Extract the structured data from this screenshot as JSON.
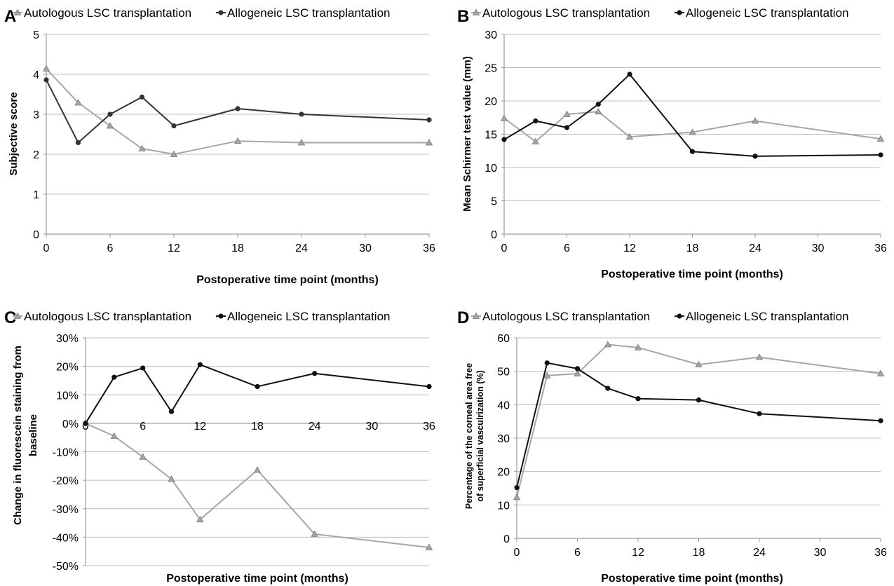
{
  "colors": {
    "autologous": "#a6a6a6",
    "allogeneic": "#333333",
    "allogeneic_dark": "#111111",
    "grid": "#bdbdbd",
    "axis": "#9a9a9a"
  },
  "chart_data": [
    {
      "panel": "A",
      "type": "line",
      "ylabel": "Subjective score",
      "xlabel": "Postoperative time point (months)",
      "xlim": [
        0,
        36
      ],
      "xticks": [
        0,
        6,
        12,
        18,
        24,
        30,
        36
      ],
      "ylim": [
        0,
        5
      ],
      "yticks": [
        0,
        1,
        2,
        3,
        4,
        5
      ],
      "ytick_labels": [
        "0",
        "1",
        "2",
        "3",
        "4",
        "5"
      ],
      "grid": true,
      "legend": "top",
      "series": [
        {
          "name": "Autologous LSC transplantation",
          "marker": "triangle",
          "x": [
            0,
            3,
            6,
            9,
            12,
            18,
            24,
            36
          ],
          "y": [
            4.14,
            3.29,
            2.71,
            2.14,
            2.0,
            2.33,
            2.29,
            2.29
          ]
        },
        {
          "name": "Allogeneic LSC transplantation",
          "marker": "circle",
          "x": [
            0,
            3,
            6,
            9,
            12,
            18,
            24,
            36
          ],
          "y": [
            3.86,
            2.29,
            3.0,
            3.43,
            2.71,
            3.14,
            3.0,
            2.86
          ]
        }
      ]
    },
    {
      "panel": "B",
      "type": "line",
      "ylabel": "Mean Schirmer test value (mm)",
      "xlabel": "Postoperative time point (months)",
      "xlim": [
        0,
        36
      ],
      "xticks": [
        0,
        6,
        12,
        18,
        24,
        30,
        36
      ],
      "ylim": [
        0,
        30
      ],
      "yticks": [
        0,
        5,
        10,
        15,
        20,
        25,
        30
      ],
      "ytick_labels": [
        "0",
        "5",
        "10",
        "15",
        "20",
        "25",
        "30"
      ],
      "grid": true,
      "legend": "top",
      "series": [
        {
          "name": "Autologous LSC transplantation",
          "marker": "triangle",
          "x": [
            0,
            3,
            6,
            9,
            12,
            18,
            24,
            36
          ],
          "y": [
            17.4,
            13.9,
            18.0,
            18.4,
            14.6,
            15.3,
            17.0,
            14.3
          ]
        },
        {
          "name": "Allogeneic LSC transplantation",
          "marker": "circle",
          "x": [
            0,
            3,
            6,
            9,
            12,
            18,
            24,
            36
          ],
          "y": [
            14.2,
            17.0,
            16.0,
            19.5,
            24.0,
            12.4,
            11.7,
            11.9
          ]
        }
      ]
    },
    {
      "panel": "C",
      "type": "line",
      "ylabel": "Change in fluorescein staining from baseline",
      "xlabel": "Postoperative time point (months)",
      "xlim": [
        0,
        36
      ],
      "xticks": [
        0,
        6,
        12,
        18,
        24,
        30,
        36
      ],
      "x_axis_crosses_at": 0,
      "ylim": [
        -50,
        30
      ],
      "yticks": [
        -50,
        -40,
        -30,
        -20,
        -10,
        0,
        10,
        20,
        30
      ],
      "ytick_labels": [
        "-50%",
        "-40%",
        "-30%",
        "-20%",
        "-10%",
        "0%",
        "10%",
        "20%",
        "30%"
      ],
      "grid": true,
      "legend": "top",
      "series": [
        {
          "name": "Autologous LSC transplantation",
          "marker": "triangle",
          "x": [
            0,
            3,
            6,
            9,
            12,
            18,
            24,
            36
          ],
          "y": [
            0,
            -4.5,
            -11.8,
            -19.6,
            -33.8,
            -16.4,
            -38.9,
            -43.6
          ]
        },
        {
          "name": "Allogeneic LSC transplantation",
          "marker": "circle",
          "x": [
            0,
            3,
            6,
            9,
            12,
            18,
            24,
            36
          ],
          "y": [
            0,
            16.2,
            19.4,
            4.1,
            20.6,
            12.9,
            17.5,
            12.9
          ]
        }
      ]
    },
    {
      "panel": "D",
      "type": "line",
      "ylabel": "Percentage of the corneal area free of superficial vasculrization (%)",
      "xlabel": "Postoperative time point (months)",
      "xlim": [
        0,
        36
      ],
      "xticks": [
        0,
        6,
        12,
        18,
        24,
        30,
        36
      ],
      "ylim": [
        0,
        60
      ],
      "yticks": [
        0,
        10,
        20,
        30,
        40,
        50,
        60
      ],
      "ytick_labels": [
        "0",
        "10",
        "20",
        "30",
        "40",
        "50",
        "60"
      ],
      "grid": true,
      "legend": "top",
      "series": [
        {
          "name": "Autologous LSC transplantation",
          "marker": "triangle",
          "x": [
            0,
            3,
            6,
            9,
            12,
            18,
            24,
            36
          ],
          "y": [
            12.3,
            48.7,
            49.3,
            58.0,
            57.1,
            52.0,
            54.2,
            49.3
          ]
        },
        {
          "name": "Allogeneic LSC transplantation",
          "marker": "circle",
          "x": [
            0,
            3,
            6,
            9,
            12,
            18,
            24,
            36
          ],
          "y": [
            15.2,
            52.5,
            50.8,
            44.9,
            41.8,
            41.4,
            37.3,
            35.2
          ]
        }
      ]
    }
  ]
}
